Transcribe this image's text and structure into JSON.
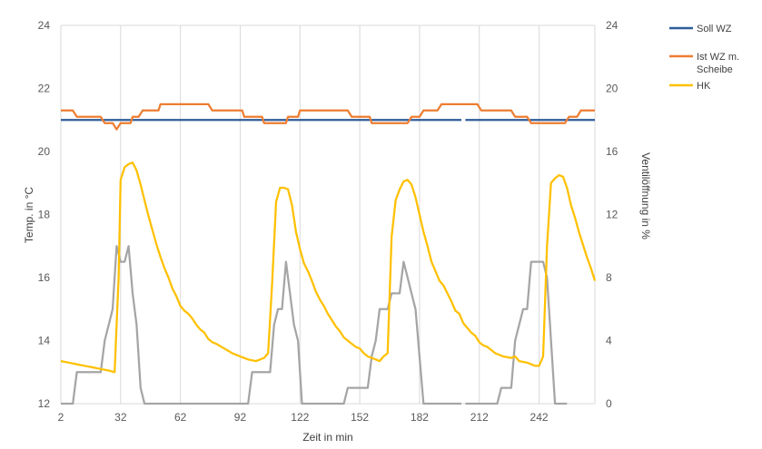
{
  "chart_data": {
    "type": "line",
    "title": "",
    "xlabel": "Zeit in min",
    "ylabel": "Temp. in °C",
    "y2label": "Ventilöffnung in %",
    "x_tick_labels": [
      "2",
      "32",
      "62",
      "92",
      "122",
      "152",
      "182",
      "212",
      "242"
    ],
    "x_tick_values": [
      2,
      32,
      62,
      92,
      122,
      152,
      182,
      212,
      242
    ],
    "xlim": [
      2,
      270
    ],
    "ylim": [
      12,
      24
    ],
    "y_ticks": [
      12,
      14,
      16,
      18,
      20,
      22,
      24
    ],
    "y2lim": [
      0,
      24
    ],
    "y2_ticks": [
      0,
      4,
      8,
      12,
      16,
      20,
      24
    ],
    "grid": "vertical",
    "legend_position": "right",
    "series": [
      {
        "name": "Soll WZ",
        "color": "#2E5C9A",
        "axis": "left",
        "segments": [
          [
            [
              2,
              21
            ],
            [
              203,
              21
            ]
          ],
          [
            [
              205,
              21
            ],
            [
              270,
              21
            ]
          ]
        ]
      },
      {
        "name": "Ist WZ m. Scheibe",
        "color": "#ED7D31",
        "axis": "left",
        "points": [
          [
            2,
            21.3
          ],
          [
            8,
            21.3
          ],
          [
            10,
            21.1
          ],
          [
            22,
            21.1
          ],
          [
            24,
            20.9
          ],
          [
            28,
            20.9
          ],
          [
            30,
            20.7
          ],
          [
            32,
            20.9
          ],
          [
            37,
            20.9
          ],
          [
            38,
            21.1
          ],
          [
            41,
            21.1
          ],
          [
            43,
            21.3
          ],
          [
            51,
            21.3
          ],
          [
            52,
            21.5
          ],
          [
            76,
            21.5
          ],
          [
            78,
            21.3
          ],
          [
            93,
            21.3
          ],
          [
            94,
            21.1
          ],
          [
            103,
            21.1
          ],
          [
            104,
            20.9
          ],
          [
            115,
            20.9
          ],
          [
            116,
            21.1
          ],
          [
            121,
            21.1
          ],
          [
            122,
            21.3
          ],
          [
            146,
            21.3
          ],
          [
            148,
            21.1
          ],
          [
            157,
            21.1
          ],
          [
            158,
            20.9
          ],
          [
            176,
            20.9
          ],
          [
            178,
            21.1
          ],
          [
            182,
            21.1
          ],
          [
            184,
            21.3
          ],
          [
            191,
            21.3
          ],
          [
            193,
            21.5
          ],
          [
            211,
            21.5
          ],
          [
            213,
            21.3
          ],
          [
            228,
            21.3
          ],
          [
            230,
            21.1
          ],
          [
            236,
            21.1
          ],
          [
            238,
            20.9
          ],
          [
            255,
            20.9
          ],
          [
            257,
            21.1
          ],
          [
            261,
            21.1
          ],
          [
            263,
            21.3
          ],
          [
            270,
            21.3
          ]
        ]
      },
      {
        "name": "HK",
        "color": "#FFC000",
        "axis": "left",
        "points": [
          [
            2,
            13.35
          ],
          [
            6,
            13.3
          ],
          [
            10,
            13.25
          ],
          [
            14,
            13.2
          ],
          [
            18,
            13.15
          ],
          [
            22,
            13.1
          ],
          [
            26,
            13.05
          ],
          [
            29,
            13.0
          ],
          [
            31,
            16.0
          ],
          [
            32,
            19.1
          ],
          [
            34,
            19.5
          ],
          [
            36,
            19.6
          ],
          [
            38,
            19.65
          ],
          [
            40,
            19.4
          ],
          [
            42,
            18.95
          ],
          [
            44,
            18.45
          ],
          [
            46,
            17.95
          ],
          [
            48,
            17.5
          ],
          [
            50,
            17.05
          ],
          [
            52,
            16.65
          ],
          [
            54,
            16.3
          ],
          [
            56,
            16.0
          ],
          [
            58,
            15.65
          ],
          [
            60,
            15.4
          ],
          [
            62,
            15.1
          ],
          [
            64,
            14.95
          ],
          [
            66,
            14.85
          ],
          [
            68,
            14.7
          ],
          [
            70,
            14.5
          ],
          [
            72,
            14.35
          ],
          [
            74,
            14.25
          ],
          [
            76,
            14.05
          ],
          [
            78,
            13.95
          ],
          [
            80,
            13.9
          ],
          [
            84,
            13.75
          ],
          [
            88,
            13.6
          ],
          [
            92,
            13.5
          ],
          [
            96,
            13.4
          ],
          [
            100,
            13.35
          ],
          [
            104,
            13.45
          ],
          [
            106,
            13.6
          ],
          [
            108,
            15.8
          ],
          [
            110,
            18.4
          ],
          [
            112,
            18.85
          ],
          [
            114,
            18.85
          ],
          [
            116,
            18.8
          ],
          [
            118,
            18.3
          ],
          [
            120,
            17.45
          ],
          [
            122,
            16.9
          ],
          [
            124,
            16.45
          ],
          [
            126,
            16.2
          ],
          [
            128,
            15.9
          ],
          [
            130,
            15.55
          ],
          [
            132,
            15.3
          ],
          [
            134,
            15.1
          ],
          [
            136,
            14.85
          ],
          [
            138,
            14.65
          ],
          [
            140,
            14.45
          ],
          [
            142,
            14.3
          ],
          [
            144,
            14.1
          ],
          [
            146,
            14.0
          ],
          [
            148,
            13.9
          ],
          [
            150,
            13.8
          ],
          [
            152,
            13.75
          ],
          [
            154,
            13.6
          ],
          [
            156,
            13.5
          ],
          [
            158,
            13.45
          ],
          [
            160,
            13.4
          ],
          [
            162,
            13.35
          ],
          [
            164,
            13.5
          ],
          [
            166,
            13.6
          ],
          [
            168,
            17.3
          ],
          [
            170,
            18.45
          ],
          [
            172,
            18.8
          ],
          [
            174,
            19.05
          ],
          [
            176,
            19.1
          ],
          [
            178,
            18.95
          ],
          [
            180,
            18.55
          ],
          [
            182,
            18.0
          ],
          [
            184,
            17.45
          ],
          [
            186,
            17.0
          ],
          [
            188,
            16.5
          ],
          [
            190,
            16.2
          ],
          [
            192,
            15.9
          ],
          [
            194,
            15.75
          ],
          [
            196,
            15.5
          ],
          [
            198,
            15.25
          ],
          [
            200,
            14.95
          ],
          [
            202,
            14.85
          ],
          [
            204,
            14.55
          ],
          [
            206,
            14.4
          ],
          [
            208,
            14.25
          ],
          [
            210,
            14.15
          ],
          [
            212,
            13.95
          ],
          [
            214,
            13.85
          ],
          [
            216,
            13.8
          ],
          [
            218,
            13.7
          ],
          [
            220,
            13.6
          ],
          [
            224,
            13.5
          ],
          [
            228,
            13.45
          ],
          [
            230,
            13.5
          ],
          [
            232,
            13.35
          ],
          [
            236,
            13.3
          ],
          [
            238,
            13.25
          ],
          [
            240,
            13.2
          ],
          [
            242,
            13.2
          ],
          [
            244,
            13.5
          ],
          [
            246,
            17.0
          ],
          [
            248,
            19.0
          ],
          [
            250,
            19.15
          ],
          [
            252,
            19.25
          ],
          [
            254,
            19.2
          ],
          [
            256,
            18.85
          ],
          [
            258,
            18.3
          ],
          [
            260,
            17.9
          ],
          [
            262,
            17.45
          ],
          [
            264,
            17.05
          ],
          [
            266,
            16.65
          ],
          [
            268,
            16.3
          ],
          [
            270,
            15.9
          ]
        ]
      },
      {
        "name": "Ventilöffnung",
        "color": "#A5A5A5",
        "axis": "right",
        "points": [
          [
            2,
            0
          ],
          [
            8,
            0
          ],
          [
            10,
            2
          ],
          [
            22,
            2
          ],
          [
            24,
            4
          ],
          [
            26,
            5
          ],
          [
            28,
            6
          ],
          [
            30,
            10
          ],
          [
            32,
            9
          ],
          [
            34,
            9
          ],
          [
            36,
            10
          ],
          [
            38,
            7
          ],
          [
            40,
            5
          ],
          [
            42,
            1
          ],
          [
            44,
            0
          ],
          [
            96,
            0
          ],
          [
            98,
            2
          ],
          [
            107,
            2
          ],
          [
            109,
            5
          ],
          [
            111,
            6
          ],
          [
            113,
            6
          ],
          [
            115,
            9
          ],
          [
            117,
            7
          ],
          [
            119,
            5
          ],
          [
            121,
            4
          ],
          [
            123,
            0
          ],
          [
            144,
            0
          ],
          [
            146,
            1
          ],
          [
            156,
            1
          ],
          [
            158,
            3
          ],
          [
            160,
            4
          ],
          [
            162,
            6
          ],
          [
            166,
            6
          ],
          [
            168,
            7
          ],
          [
            172,
            7
          ],
          [
            174,
            9
          ],
          [
            176,
            8
          ],
          [
            178,
            7
          ],
          [
            180,
            6
          ],
          [
            182,
            3
          ],
          [
            184,
            0
          ],
          [
            203,
            0
          ]
        ],
        "segments_after_gap": [
          [
            205,
            0
          ],
          [
            221,
            0
          ],
          [
            223,
            1
          ],
          [
            228,
            1
          ],
          [
            230,
            4
          ],
          [
            232,
            5
          ],
          [
            234,
            6
          ],
          [
            236,
            6
          ],
          [
            238,
            9
          ],
          [
            244,
            9
          ],
          [
            246,
            8
          ],
          [
            248,
            4
          ],
          [
            250,
            0
          ],
          [
            256,
            0
          ]
        ]
      }
    ],
    "legend": [
      {
        "label": "Soll WZ",
        "color": "#2E5C9A"
      },
      {
        "label": "Ist WZ m. Scheibe",
        "color": "#ED7D31"
      },
      {
        "label": "HK",
        "color": "#FFC000"
      }
    ]
  }
}
